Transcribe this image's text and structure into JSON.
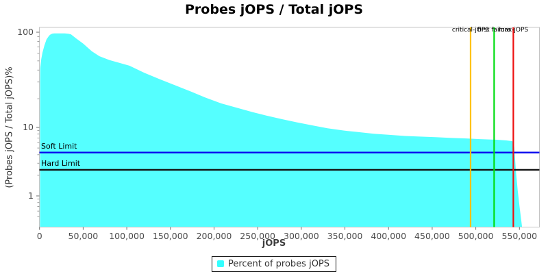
{
  "title": "Probes jOPS / Total jOPS",
  "chart_data": {
    "type": "area",
    "title": "Probes jOPS / Total jOPS",
    "xlabel": "jOPS",
    "ylabel": "(Probes jOPS / Total jOPS)%",
    "y_scale": "log",
    "x_range": [
      0,
      573000
    ],
    "y_tick_values": [
      100,
      10,
      1
    ],
    "y_tick_labels": [
      "100",
      "10",
      "1"
    ],
    "y_minor_tick_values": [
      90,
      80,
      70,
      60,
      50,
      40,
      30,
      20,
      9,
      8,
      7,
      6,
      5,
      4,
      3,
      2,
      0.9,
      0.8,
      0.7,
      0.6,
      0.5
    ],
    "x_tick_values": [
      0,
      50000,
      100000,
      150000,
      200000,
      250000,
      300000,
      350000,
      400000,
      450000,
      500000,
      550000
    ],
    "x_tick_labels": [
      "0",
      "50,000",
      "100,000",
      "150,000",
      "200,000",
      "250,000",
      "300,000",
      "350,000",
      "400,000",
      "450,000",
      "500,000",
      "550,000"
    ],
    "grid": false,
    "legend_position": "bottom",
    "series": [
      {
        "name": "Percent of probes jOPS",
        "color": "#55FFFF",
        "points": [
          [
            550,
            0.34
          ],
          [
            600,
            0.45
          ],
          [
            700,
            30
          ],
          [
            900,
            42
          ],
          [
            2000,
            52
          ],
          [
            3400,
            61
          ],
          [
            5500,
            72
          ],
          [
            8000,
            84
          ],
          [
            11000,
            92
          ],
          [
            12800,
            95
          ],
          [
            15000,
            96.8
          ],
          [
            17000,
            97.3
          ],
          [
            29000,
            97.3
          ],
          [
            33000,
            96.5
          ],
          [
            36000,
            95
          ],
          [
            42000,
            86
          ],
          [
            50000,
            76
          ],
          [
            60000,
            63
          ],
          [
            68500,
            56
          ],
          [
            80000,
            51
          ],
          [
            103000,
            44.5
          ],
          [
            120000,
            37.5
          ],
          [
            138000,
            32
          ],
          [
            155000,
            27.8
          ],
          [
            174000,
            23.7
          ],
          [
            190000,
            20.6
          ],
          [
            208000,
            17.9
          ],
          [
            226000,
            16.1
          ],
          [
            244000,
            14.5
          ],
          [
            260000,
            13.3
          ],
          [
            278000,
            12.2
          ],
          [
            295000,
            11.3
          ],
          [
            313000,
            10.5
          ],
          [
            330000,
            9.7
          ],
          [
            349000,
            9.0
          ],
          [
            365000,
            8.55
          ],
          [
            383000,
            8.1
          ],
          [
            400000,
            7.8
          ],
          [
            419000,
            7.5
          ],
          [
            436000,
            7.35
          ],
          [
            454000,
            7.2
          ],
          [
            470000,
            7.05
          ],
          [
            489000,
            6.9
          ],
          [
            505000,
            6.75
          ],
          [
            524000,
            6.6
          ],
          [
            535000,
            6.45
          ],
          [
            542000,
            6.3
          ],
          [
            544000,
            5.2
          ],
          [
            546000,
            2.3
          ],
          [
            548000,
            1.2
          ],
          [
            550000,
            0.72
          ],
          [
            553000,
            0.35
          ]
        ]
      }
    ],
    "h_markers": [
      {
        "label": "Soft Limit",
        "value_pct": 4.3,
        "color": "#0808EE"
      },
      {
        "label": "Hard Limit",
        "value_pct": 2.4,
        "color": "#141414"
      }
    ],
    "v_markers": [
      {
        "label": "critical-jOPS",
        "jops": 494000,
        "color": "#FFC200"
      },
      {
        "label": "first failure",
        "jops": 521000,
        "color": "#00DD11"
      },
      {
        "label": "max-jOPS",
        "jops": 543000,
        "color": "#EE1111"
      }
    ],
    "legend": {
      "entries": [
        {
          "label": "Percent of probes jOPS",
          "color": "#33FFFF"
        }
      ]
    }
  }
}
